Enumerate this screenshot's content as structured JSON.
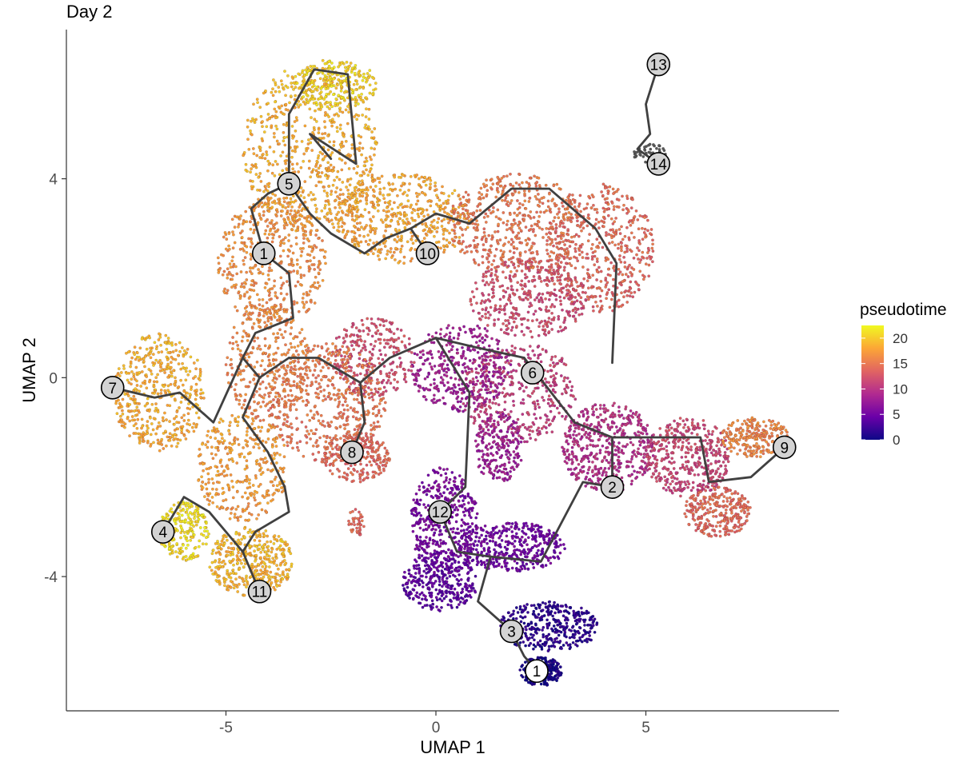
{
  "chart_data": {
    "type": "scatter",
    "title": "Day 2",
    "xlabel": "UMAP 1",
    "ylabel": "UMAP 2",
    "xlim": [
      -8.8,
      9.6
    ],
    "ylim": [
      -6.7,
      7.0
    ],
    "xticks": [
      -5,
      0,
      5
    ],
    "yticks": [
      -4,
      0,
      4
    ],
    "xtick_labels": [
      "-5",
      "0",
      "5"
    ],
    "ytick_labels": [
      "-4",
      "0",
      "4"
    ],
    "grid": false,
    "legend": {
      "title": "pseudotime",
      "placement": "right",
      "min": 0,
      "max": 22.5,
      "ticks": [
        0,
        5,
        10,
        15,
        20
      ],
      "tick_labels": [
        "0",
        "5",
        "10",
        "15",
        "20"
      ],
      "colors": [
        "#0d0887",
        "#6a00a8",
        "#b12a90",
        "#e16462",
        "#fca636",
        "#f0f921"
      ]
    },
    "regions": [
      {
        "cx": -3.0,
        "cy": 4.6,
        "rx": 1.6,
        "ry": 1.7,
        "n": 700,
        "t": 18.5
      },
      {
        "cx": -2.4,
        "cy": 5.9,
        "rx": 1.0,
        "ry": 0.5,
        "n": 260,
        "t": 20.5
      },
      {
        "cx": -0.8,
        "cy": 3.2,
        "rx": 1.6,
        "ry": 0.9,
        "n": 520,
        "t": 18.0
      },
      {
        "cx": -3.9,
        "cy": 2.3,
        "rx": 1.3,
        "ry": 1.3,
        "n": 480,
        "t": 16.5
      },
      {
        "cx": 1.9,
        "cy": 3.1,
        "rx": 1.6,
        "ry": 1.0,
        "n": 500,
        "t": 15.0
      },
      {
        "cx": 3.9,
        "cy": 2.6,
        "rx": 1.3,
        "ry": 1.3,
        "n": 500,
        "t": 14.0
      },
      {
        "cx": 2.2,
        "cy": 1.6,
        "rx": 1.4,
        "ry": 0.8,
        "n": 380,
        "t": 12.0
      },
      {
        "cx": 2.0,
        "cy": -0.3,
        "rx": 1.4,
        "ry": 1.0,
        "n": 380,
        "t": 11.0
      },
      {
        "cx": 0.6,
        "cy": 0.2,
        "rx": 1.2,
        "ry": 0.9,
        "n": 400,
        "t": 8.0
      },
      {
        "cx": -1.5,
        "cy": 0.4,
        "rx": 1.0,
        "ry": 0.8,
        "n": 280,
        "t": 12.0
      },
      {
        "cx": -2.6,
        "cy": -0.5,
        "rx": 1.4,
        "ry": 1.2,
        "n": 520,
        "t": 15.0
      },
      {
        "cx": -1.9,
        "cy": -1.6,
        "rx": 0.8,
        "ry": 0.5,
        "n": 240,
        "t": 14.0
      },
      {
        "cx": -1.9,
        "cy": -2.9,
        "rx": 0.2,
        "ry": 0.3,
        "n": 40,
        "t": 14.0
      },
      {
        "cx": -6.6,
        "cy": -0.3,
        "rx": 1.1,
        "ry": 1.2,
        "n": 480,
        "t": 18.5
      },
      {
        "cx": -4.0,
        "cy": 0.3,
        "rx": 1.0,
        "ry": 1.2,
        "n": 320,
        "t": 16.0
      },
      {
        "cx": -4.6,
        "cy": -1.8,
        "rx": 1.1,
        "ry": 1.1,
        "n": 360,
        "t": 17.5
      },
      {
        "cx": -6.0,
        "cy": -3.1,
        "rx": 0.6,
        "ry": 0.6,
        "n": 220,
        "t": 21.0
      },
      {
        "cx": -4.4,
        "cy": -3.7,
        "rx": 1.0,
        "ry": 0.7,
        "n": 420,
        "t": 19.0
      },
      {
        "cx": 0.2,
        "cy": -2.9,
        "rx": 0.8,
        "ry": 1.1,
        "n": 420,
        "t": 5.5
      },
      {
        "cx": 0.1,
        "cy": -4.1,
        "rx": 0.9,
        "ry": 0.6,
        "n": 320,
        "t": 4.0
      },
      {
        "cx": 1.8,
        "cy": -3.4,
        "rx": 1.3,
        "ry": 0.5,
        "n": 420,
        "t": 5.0
      },
      {
        "cx": 2.7,
        "cy": -5.0,
        "rx": 1.2,
        "ry": 0.5,
        "n": 380,
        "t": 1.5
      },
      {
        "cx": 2.5,
        "cy": -5.9,
        "rx": 0.5,
        "ry": 0.3,
        "n": 240,
        "t": 0.5
      },
      {
        "cx": 1.5,
        "cy": -1.4,
        "rx": 0.6,
        "ry": 0.7,
        "n": 220,
        "t": 8.0
      },
      {
        "cx": 4.1,
        "cy": -1.4,
        "rx": 1.1,
        "ry": 0.9,
        "n": 500,
        "t": 9.5
      },
      {
        "cx": 6.0,
        "cy": -1.6,
        "rx": 1.0,
        "ry": 0.8,
        "n": 420,
        "t": 11.5
      },
      {
        "cx": 6.7,
        "cy": -2.7,
        "rx": 0.8,
        "ry": 0.5,
        "n": 300,
        "t": 14.0
      },
      {
        "cx": 7.6,
        "cy": -1.2,
        "rx": 0.8,
        "ry": 0.4,
        "n": 240,
        "t": 16.0
      },
      {
        "cx": 5.1,
        "cy": 4.5,
        "rx": 0.4,
        "ry": 0.2,
        "n": 50,
        "t": null
      }
    ],
    "trajectory": [
      [
        [
          -4.1,
          2.5
        ],
        [
          -4.4,
          3.4
        ],
        [
          -4.0,
          3.7
        ],
        [
          -3.5,
          3.9
        ],
        [
          -3.5,
          5.3
        ],
        [
          -2.9,
          6.2
        ],
        [
          -2.1,
          6.1
        ],
        [
          -1.9,
          4.3
        ],
        [
          -3.0,
          4.9
        ],
        [
          -2.5,
          4.4
        ]
      ],
      [
        [
          -3.5,
          3.9
        ],
        [
          -3.0,
          3.3
        ],
        [
          -2.5,
          2.9
        ],
        [
          -1.7,
          2.5
        ],
        [
          -1.2,
          2.8
        ],
        [
          -0.6,
          3.0
        ],
        [
          -0.2,
          2.5
        ]
      ],
      [
        [
          -0.6,
          3.0
        ],
        [
          0.0,
          3.3
        ],
        [
          0.8,
          3.1
        ],
        [
          1.8,
          3.8
        ],
        [
          2.7,
          3.8
        ],
        [
          3.8,
          3.0
        ],
        [
          4.3,
          2.3
        ],
        [
          4.2,
          0.3
        ]
      ],
      [
        [
          -4.1,
          2.5
        ],
        [
          -3.5,
          2.1
        ],
        [
          -3.4,
          1.2
        ],
        [
          -4.3,
          0.9
        ],
        [
          -4.6,
          0.4
        ],
        [
          -4.2,
          0.0
        ],
        [
          -3.5,
          0.4
        ]
      ],
      [
        [
          -3.5,
          0.4
        ],
        [
          -2.8,
          0.4
        ],
        [
          -1.8,
          -0.1
        ],
        [
          -1.1,
          0.4
        ],
        [
          0.0,
          0.8
        ],
        [
          1.0,
          0.6
        ],
        [
          2.1,
          0.4
        ],
        [
          2.3,
          0.1
        ]
      ],
      [
        [
          -4.2,
          0.0
        ],
        [
          -4.6,
          -0.8
        ],
        [
          -4.0,
          -1.5
        ],
        [
          -3.6,
          -2.2
        ],
        [
          -3.5,
          -2.7
        ],
        [
          -4.3,
          -3.1
        ],
        [
          -4.6,
          -3.5
        ],
        [
          -4.2,
          -4.3
        ]
      ],
      [
        [
          -4.6,
          -3.5
        ],
        [
          -5.4,
          -2.7
        ],
        [
          -6.0,
          -2.4
        ],
        [
          -6.5,
          -3.1
        ]
      ],
      [
        [
          -4.6,
          0.4
        ],
        [
          -5.3,
          -0.9
        ],
        [
          -6.1,
          -0.3
        ],
        [
          -6.7,
          -0.4
        ],
        [
          -7.7,
          -0.2
        ]
      ],
      [
        [
          -1.8,
          -0.1
        ],
        [
          -1.7,
          -0.9
        ],
        [
          -2.0,
          -1.5
        ]
      ],
      [
        [
          0.0,
          0.8
        ],
        [
          0.8,
          -0.3
        ],
        [
          0.7,
          -2.2
        ],
        [
          0.1,
          -2.7
        ],
        [
          0.5,
          -3.5
        ],
        [
          1.3,
          -3.6
        ],
        [
          1.0,
          -4.5
        ],
        [
          1.8,
          -5.1
        ],
        [
          2.1,
          -5.6
        ],
        [
          2.4,
          -5.9
        ]
      ],
      [
        [
          1.3,
          -3.6
        ],
        [
          2.5,
          -3.7
        ],
        [
          3.5,
          -2.1
        ],
        [
          4.2,
          -2.2
        ],
        [
          4.2,
          -1.2
        ],
        [
          5.3,
          -1.2
        ],
        [
          6.3,
          -1.2
        ],
        [
          6.5,
          -2.1
        ],
        [
          7.5,
          -2.0
        ],
        [
          8.3,
          -1.4
        ]
      ],
      [
        [
          2.1,
          0.4
        ],
        [
          3.3,
          -0.9
        ],
        [
          4.2,
          -1.2
        ]
      ],
      [
        [
          5.3,
          6.3
        ],
        [
          5.0,
          5.5
        ],
        [
          5.1,
          4.9
        ],
        [
          4.8,
          4.6
        ],
        [
          5.3,
          4.3
        ]
      ]
    ],
    "nodes": [
      {
        "label": "1",
        "x": -4.1,
        "y": 2.5,
        "fill": "#d3d3d3"
      },
      {
        "label": "5",
        "x": -3.5,
        "y": 3.9,
        "fill": "#d3d3d3"
      },
      {
        "label": "10",
        "x": -0.2,
        "y": 2.5,
        "fill": "#d3d3d3"
      },
      {
        "label": "13",
        "x": 5.3,
        "y": 6.3,
        "fill": "#d3d3d3"
      },
      {
        "label": "14",
        "x": 5.3,
        "y": 4.3,
        "fill": "#d3d3d3"
      },
      {
        "label": "6",
        "x": 2.3,
        "y": 0.1,
        "fill": "#d3d3d3"
      },
      {
        "label": "7",
        "x": -7.7,
        "y": -0.2,
        "fill": "#d3d3d3"
      },
      {
        "label": "8",
        "x": -2.0,
        "y": -1.5,
        "fill": "#d3d3d3"
      },
      {
        "label": "9",
        "x": 8.3,
        "y": -1.4,
        "fill": "#d3d3d3"
      },
      {
        "label": "2",
        "x": 4.2,
        "y": -2.2,
        "fill": "#d3d3d3"
      },
      {
        "label": "12",
        "x": 0.1,
        "y": -2.7,
        "fill": "#d3d3d3"
      },
      {
        "label": "4",
        "x": -6.5,
        "y": -3.1,
        "fill": "#d3d3d3"
      },
      {
        "label": "11",
        "x": -4.2,
        "y": -4.3,
        "fill": "#d3d3d3"
      },
      {
        "label": "3",
        "x": 1.8,
        "y": -5.1,
        "fill": "#d3d3d3"
      },
      {
        "label": "1",
        "x": 2.4,
        "y": -5.9,
        "fill": "#ffffff"
      }
    ],
    "colors": {
      "trajectory": "#404040",
      "na_point": "#595959",
      "node_stroke": "#000000"
    }
  }
}
